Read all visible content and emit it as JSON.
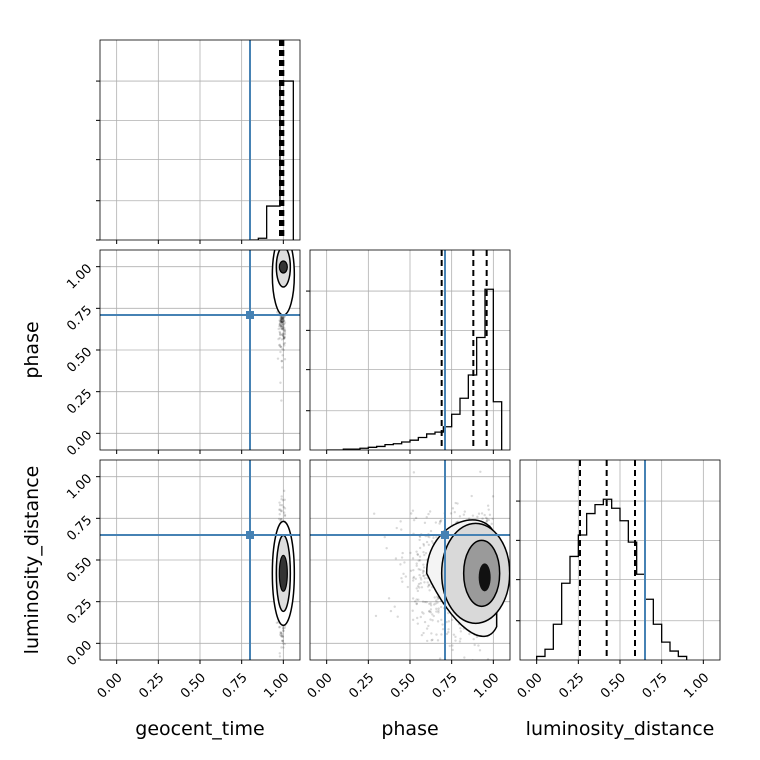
{
  "chart_data": {
    "type": "corner",
    "parameters": [
      "geocent_time",
      "phase",
      "luminosity_distance"
    ],
    "axis_labels": {
      "x": [
        "geocent_time",
        "phase",
        "luminosity_distance"
      ],
      "y": [
        "",
        "phase",
        "luminosity_distance"
      ]
    },
    "tick_values": [
      0.0,
      0.25,
      0.5,
      0.75,
      1.0
    ],
    "tick_labels": [
      "0.00",
      "0.25",
      "0.50",
      "0.75",
      "1.00"
    ],
    "axis_range": [
      -0.1,
      1.1
    ],
    "grid": true,
    "truths": {
      "geocent_time": 0.8,
      "phase": 0.71,
      "luminosity_distance": 0.65
    },
    "colors": {
      "truth": "#4682b4",
      "contour": "#000000",
      "grid": "#b0b0b0",
      "axis": "#000000"
    },
    "histograms": {
      "geocent_time": {
        "quantiles": [
          0.98,
          0.99,
          1.0
        ],
        "ymax": 1.0,
        "steps": [
          [
            0.8,
            0.0
          ],
          [
            0.85,
            0.01
          ],
          [
            0.9,
            0.19
          ],
          [
            0.95,
            0.19
          ],
          [
            0.98,
            0.89
          ],
          [
            1.0,
            0.89
          ],
          [
            1.06,
            0.0
          ]
        ]
      },
      "phase": {
        "quantiles": [
          0.69,
          0.88,
          0.96
        ],
        "ymax": 1.0,
        "steps": [
          [
            0.0,
            0.0
          ],
          [
            0.1,
            0.005
          ],
          [
            0.2,
            0.01
          ],
          [
            0.25,
            0.015
          ],
          [
            0.3,
            0.02
          ],
          [
            0.35,
            0.03
          ],
          [
            0.4,
            0.035
          ],
          [
            0.45,
            0.045
          ],
          [
            0.5,
            0.055
          ],
          [
            0.55,
            0.07
          ],
          [
            0.6,
            0.09
          ],
          [
            0.65,
            0.1
          ],
          [
            0.7,
            0.13
          ],
          [
            0.75,
            0.2
          ],
          [
            0.8,
            0.29
          ],
          [
            0.85,
            0.42
          ],
          [
            0.9,
            0.63
          ],
          [
            0.95,
            0.9
          ],
          [
            1.0,
            0.27
          ],
          [
            1.05,
            0.0
          ]
        ]
      },
      "luminosity_distance": {
        "quantiles": [
          0.26,
          0.42,
          0.59
        ],
        "ymax": 1.0,
        "steps": [
          [
            0.0,
            0.02
          ],
          [
            0.05,
            0.06
          ],
          [
            0.1,
            0.2
          ],
          [
            0.15,
            0.43
          ],
          [
            0.2,
            0.58
          ],
          [
            0.25,
            0.7
          ],
          [
            0.3,
            0.82
          ],
          [
            0.35,
            0.87
          ],
          [
            0.4,
            0.9
          ],
          [
            0.45,
            0.85
          ],
          [
            0.5,
            0.78
          ],
          [
            0.55,
            0.66
          ],
          [
            0.6,
            0.48
          ],
          [
            0.65,
            0.34
          ],
          [
            0.7,
            0.2
          ],
          [
            0.75,
            0.1
          ],
          [
            0.8,
            0.05
          ],
          [
            0.85,
            0.02
          ],
          [
            0.9,
            0.0
          ]
        ]
      }
    }
  }
}
